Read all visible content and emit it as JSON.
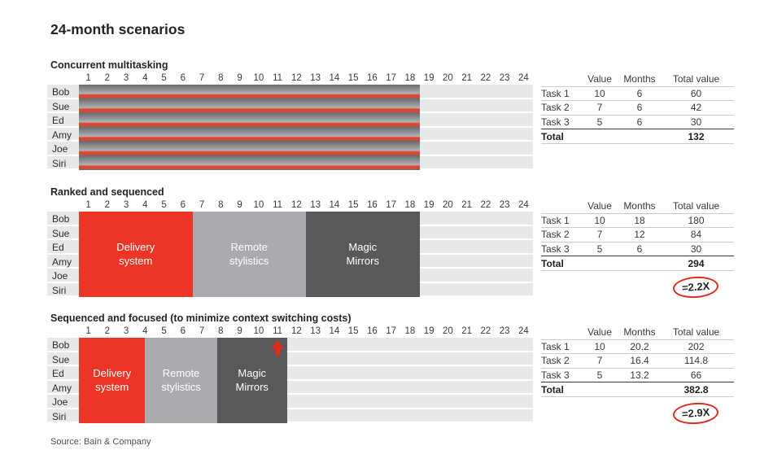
{
  "title": "24-month scenarios",
  "source_note": "Source: Bain & Company",
  "table_headers": [
    "Value",
    "Months",
    "Total value"
  ],
  "total_label": "Total",
  "month_tick_labels": [
    "1",
    "2",
    "3",
    "4",
    "5",
    "6",
    "7",
    "8",
    "9",
    "10",
    "11",
    "12",
    "13",
    "14",
    "15",
    "16",
    "17",
    "18",
    "19",
    "20",
    "21",
    "22",
    "23",
    "24"
  ],
  "colors": {
    "block_red": "#ec3527",
    "block_light_gray": "#a9abae",
    "block_dark_gray": "#58595b",
    "row_band_gray": "#e7e8e9",
    "stripe_dark": "#6b6d70",
    "stripe_mid": "#95979a",
    "stripe_light": "#b0b2b4",
    "stripe_red": "#e2452f",
    "annotation_red": "#df2b1c"
  },
  "chart_data": [
    {
      "type": "gantt",
      "title": "Concurrent multitasking",
      "x_unit": "month",
      "x_range": [
        0,
        24
      ],
      "rows": [
        "Bob",
        "Sue",
        "Ed",
        "Amy",
        "Joe",
        "Siri"
      ],
      "blocks": [
        {
          "label": "",
          "start": 0,
          "end": 18,
          "fill": "striped"
        }
      ],
      "tasks": [
        {
          "name": "Task 1",
          "value": 10,
          "months": 6,
          "total": 60
        },
        {
          "name": "Task 2",
          "value": 7,
          "months": 6,
          "total": 42
        },
        {
          "name": "Task 3",
          "value": 5,
          "months": 6,
          "total": 30
        }
      ],
      "total": 132,
      "multiplier": null
    },
    {
      "type": "gantt",
      "title": "Ranked and sequenced",
      "x_unit": "month",
      "x_range": [
        0,
        24
      ],
      "rows": [
        "Bob",
        "Sue",
        "Ed",
        "Amy",
        "Joe",
        "Siri"
      ],
      "blocks": [
        {
          "label": "Delivery system",
          "start": 0,
          "end": 6,
          "fill": "red"
        },
        {
          "label": "Remote stylistics",
          "start": 6,
          "end": 12,
          "fill": "light"
        },
        {
          "label": "Magic Mirrors",
          "start": 12,
          "end": 18,
          "fill": "dark"
        }
      ],
      "tasks": [
        {
          "name": "Task 1",
          "value": 10,
          "months": 18,
          "total": 180
        },
        {
          "name": "Task 2",
          "value": 7,
          "months": 12,
          "total": 84
        },
        {
          "name": "Task 3",
          "value": 5,
          "months": 6,
          "total": 30
        }
      ],
      "total": 294,
      "multiplier": "=2.2X"
    },
    {
      "type": "gantt",
      "title": "Sequenced and focused (to minimize context switching costs)",
      "x_unit": "month",
      "x_range": [
        0,
        24
      ],
      "rows": [
        "Bob",
        "Sue",
        "Ed",
        "Amy",
        "Joe",
        "Siri"
      ],
      "blocks": [
        {
          "label": "Delivery system",
          "start": 0,
          "end": 3.5,
          "fill": "red"
        },
        {
          "label": "Remote stylistics",
          "start": 3.5,
          "end": 7.3,
          "fill": "light"
        },
        {
          "label": "Magic Mirrors",
          "start": 7.3,
          "end": 11,
          "fill": "dark"
        }
      ],
      "arrow_month": 10.5,
      "tasks": [
        {
          "name": "Task 1",
          "value": 10,
          "months": 20.2,
          "total": 202
        },
        {
          "name": "Task 2",
          "value": 7,
          "months": 16.4,
          "total": 114.8
        },
        {
          "name": "Task 3",
          "value": 5,
          "months": 13.2,
          "total": 66
        }
      ],
      "total": 382.8,
      "multiplier": "=2.9X"
    }
  ]
}
